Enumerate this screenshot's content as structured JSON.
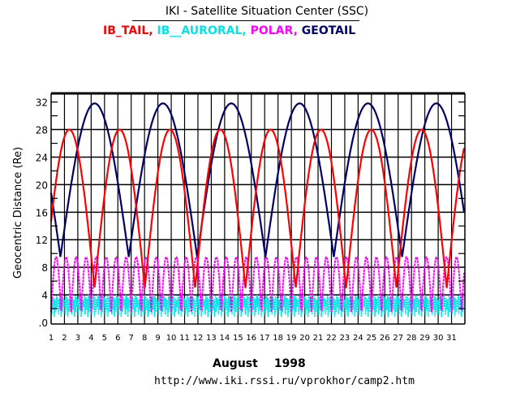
{
  "chart_data": {
    "type": "line",
    "title": "IKI - Satellite Situation Center (SSC)",
    "legend": [
      {
        "name": "IB_TAIL",
        "color": "#ff0000"
      },
      {
        "name": "IB__AURORAL",
        "color": "#00e5e5"
      },
      {
        "name": "POLAR",
        "color": "#ff00ff"
      },
      {
        "name": "GEOTAIL",
        "color": "#000066"
      }
    ],
    "legend_placement": "top",
    "xlabel": "August 1998",
    "xlabel_month": "August",
    "xlabel_year": "1998",
    "ylabel": "Geocentric Distance (Re)",
    "xlim": [
      1,
      32
    ],
    "ylim": [
      0,
      33.2
    ],
    "x_ticks": [
      "1",
      "2",
      "3",
      "4",
      "5",
      "6",
      "7",
      "8",
      "9",
      "10",
      "11",
      "12",
      "13",
      "14",
      "15",
      "16",
      "17",
      "18",
      "19",
      "20",
      "21",
      "22",
      "23",
      "24",
      "25",
      "26",
      "27",
      "28",
      "29",
      "30",
      "31"
    ],
    "y_ticks": [
      {
        "value": 0,
        "label": ".0"
      },
      {
        "value": 4,
        "label": "4"
      },
      {
        "value": 8,
        "label": "8"
      },
      {
        "value": 12,
        "label": "12"
      },
      {
        "value": 16,
        "label": "16"
      },
      {
        "value": 20,
        "label": "20"
      },
      {
        "value": 24,
        "label": "24"
      },
      {
        "value": 28,
        "label": "28"
      },
      {
        "value": 32,
        "label": "32"
      }
    ],
    "grid": true,
    "series": [
      {
        "name": "GEOTAIL",
        "color": "#000066",
        "kind": "orbit",
        "max": 31.8,
        "min": 9.5,
        "perigee_days": [
          1.7,
          6.8,
          11.9,
          17.1,
          22.3,
          27.3
        ],
        "apogee_days": [
          4.3,
          9.4,
          14.6,
          19.7,
          24.7,
          29.9
        ],
        "period_days": 5.12
      },
      {
        "name": "IB_TAIL",
        "color": "#ff0000",
        "kind": "orbit",
        "max": 28.0,
        "min": 5.0,
        "perigee_days": [
          4.25,
          7.9,
          11.7,
          15.4,
          19.2,
          22.9,
          26.7,
          30.5
        ],
        "apogee_days": [
          2.3,
          6.1,
          9.9,
          13.6,
          17.3,
          21.2,
          24.9,
          28.5
        ],
        "period_days": 3.77
      },
      {
        "name": "POLAR",
        "color": "#ff00ff",
        "kind": "orbit",
        "max": 9.5,
        "min": 1.5,
        "period_days": 0.75
      },
      {
        "name": "IB__AURORAL",
        "color": "#00e5e5",
        "kind": "dense",
        "max": 4.0,
        "min": 0.8,
        "period_days": 0.1
      }
    ]
  },
  "footer": {
    "url": "http://www.iki.rssi.ru/vprokhor/camp2.htm"
  }
}
